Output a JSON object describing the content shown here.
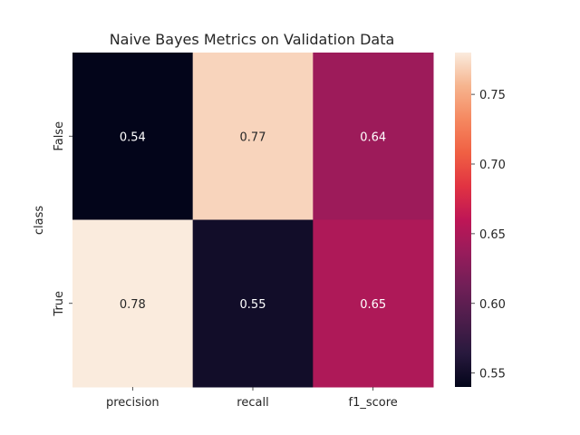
{
  "chart_data": {
    "type": "heatmap",
    "title": "Naive Bayes Metrics on Validation Data",
    "xlabel": "",
    "ylabel": "class",
    "x_categories": [
      "precision",
      "recall",
      "f1_score"
    ],
    "y_categories": [
      "False",
      "True"
    ],
    "values": [
      [
        0.54,
        0.77,
        0.64
      ],
      [
        0.78,
        0.55,
        0.65
      ]
    ],
    "annotations": [
      [
        "0.54",
        "0.77",
        "0.64"
      ],
      [
        "0.78",
        "0.55",
        "0.65"
      ]
    ],
    "colorbar": {
      "vmin": 0.54,
      "vmax": 0.78,
      "ticks": [
        0.55,
        0.6,
        0.65,
        0.7,
        0.75
      ],
      "tick_labels": [
        "0.55",
        "0.60",
        "0.65",
        "0.70",
        "0.75"
      ]
    },
    "colormap": "rocket",
    "colormap_stops": [
      "#03051a",
      "#28193d",
      "#4c1d4b",
      "#701f57",
      "#971c5b",
      "#be1656",
      "#e13342",
      "#f06043",
      "#f58860",
      "#f6b48e",
      "#faebdd"
    ]
  }
}
